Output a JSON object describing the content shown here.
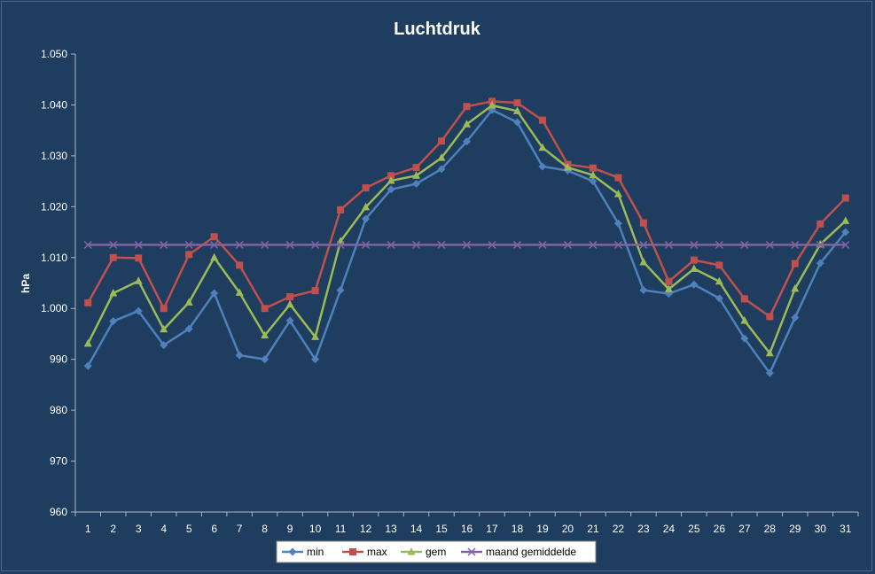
{
  "chart_data": {
    "type": "line",
    "title": "Luchtdruk",
    "xlabel": "",
    "ylabel": "hPa",
    "ylim": [
      960,
      1050
    ],
    "yticks": [
      960,
      970,
      980,
      990,
      1000,
      1010,
      1020,
      1030,
      1040,
      1050
    ],
    "ytick_labels": [
      "960",
      "970",
      "980",
      "990",
      "1.000",
      "1.010",
      "1.020",
      "1.030",
      "1.040",
      "1.050"
    ],
    "categories": [
      "1",
      "2",
      "3",
      "4",
      "5",
      "6",
      "7",
      "8",
      "9",
      "10",
      "11",
      "12",
      "13",
      "14",
      "15",
      "16",
      "17",
      "18",
      "19",
      "20",
      "21",
      "22",
      "23",
      "24",
      "25",
      "26",
      "27",
      "28",
      "29",
      "30",
      "31"
    ],
    "grid": false,
    "legend_position": "bottom",
    "series": [
      {
        "name": "min",
        "color": "#4f81bd",
        "marker": "diamond",
        "values": [
          988.7,
          997.5,
          999.5,
          992.8,
          996.0,
          1003.0,
          990.8,
          990.0,
          997.6,
          990.0,
          1003.6,
          1017.6,
          1023.4,
          1024.5,
          1027.4,
          1032.8,
          1039.0,
          1036.6,
          1027.9,
          1027.1,
          1025.0,
          1016.7,
          1003.6,
          1002.9,
          1004.7,
          1002.0,
          994.1,
          987.3,
          998.2,
          1008.9,
          1015.0
        ]
      },
      {
        "name": "max",
        "color": "#c0504d",
        "marker": "square",
        "values": [
          1001.1,
          1010.0,
          1009.9,
          1000.0,
          1010.6,
          1014.1,
          1008.5,
          1000.0,
          1002.3,
          1003.5,
          1019.4,
          1023.7,
          1026.1,
          1027.7,
          1032.9,
          1039.7,
          1040.7,
          1040.4,
          1037.0,
          1028.3,
          1027.6,
          1025.7,
          1016.8,
          1005.3,
          1009.5,
          1008.5,
          1001.9,
          998.4,
          1008.8,
          1016.6,
          1021.7
        ]
      },
      {
        "name": "gem",
        "color": "#9bbb59",
        "marker": "triangle",
        "values": [
          993.1,
          1003.0,
          1005.4,
          995.9,
          1001.2,
          1010.0,
          1003.1,
          994.7,
          1000.8,
          994.4,
          1013.2,
          1019.9,
          1025.1,
          1026.1,
          1029.6,
          1036.2,
          1039.9,
          1038.8,
          1031.6,
          1027.7,
          1026.2,
          1022.5,
          1009.1,
          1003.8,
          1007.8,
          1005.3,
          997.6,
          991.2,
          1003.9,
          1012.6,
          1017.2
        ]
      },
      {
        "name": "maand gemiddelde",
        "color": "#8064a2",
        "marker": "x",
        "values": [
          1012.5,
          1012.5,
          1012.5,
          1012.5,
          1012.5,
          1012.5,
          1012.5,
          1012.5,
          1012.5,
          1012.5,
          1012.5,
          1012.5,
          1012.5,
          1012.5,
          1012.5,
          1012.5,
          1012.5,
          1012.5,
          1012.5,
          1012.5,
          1012.5,
          1012.5,
          1012.5,
          1012.5,
          1012.5,
          1012.5,
          1012.5,
          1012.5,
          1012.5,
          1012.5,
          1012.5
        ]
      }
    ]
  }
}
